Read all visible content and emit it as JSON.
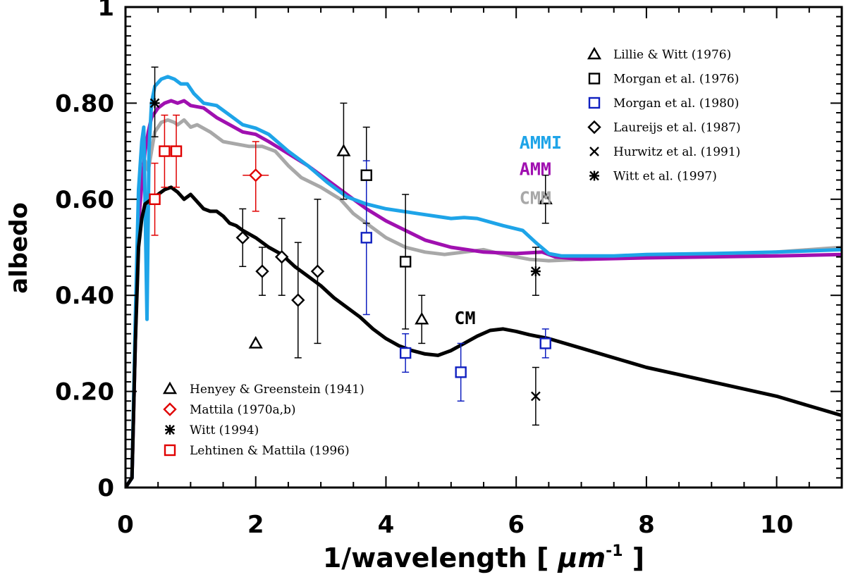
{
  "chart_data": {
    "type": "line",
    "xlabel_main": "1/wavelength [ ",
    "xlabel_unit": "μm",
    "xlabel_exp": "-1",
    "xlabel_close": " ]",
    "ylabel": "albedo",
    "xlim": [
      0,
      11
    ],
    "ylim": [
      0,
      1
    ],
    "xticks": [
      0,
      2,
      4,
      6,
      8,
      10
    ],
    "yticks": [
      0,
      0.2,
      0.4,
      0.6,
      0.8,
      1
    ],
    "xtick_labels": [
      "0",
      "2",
      "4",
      "6",
      "8",
      "10"
    ],
    "ytick_labels": [
      "0",
      "0.20",
      "0.40",
      "0.60",
      "0.80",
      "1"
    ],
    "series": [
      {
        "name": "CMM",
        "color": "#a8a8a8",
        "points": [
          [
            0,
            0
          ],
          [
            0.1,
            0.02
          ],
          [
            0.15,
            0.3
          ],
          [
            0.2,
            0.6
          ],
          [
            0.25,
            0.65
          ],
          [
            0.3,
            0.68
          ],
          [
            0.35,
            0.66
          ],
          [
            0.4,
            0.7
          ],
          [
            0.45,
            0.74
          ],
          [
            0.55,
            0.76
          ],
          [
            0.65,
            0.765
          ],
          [
            0.75,
            0.76
          ],
          [
            0.8,
            0.755
          ],
          [
            0.9,
            0.765
          ],
          [
            1.0,
            0.75
          ],
          [
            1.1,
            0.755
          ],
          [
            1.3,
            0.74
          ],
          [
            1.5,
            0.72
          ],
          [
            1.7,
            0.715
          ],
          [
            1.9,
            0.71
          ],
          [
            2.1,
            0.71
          ],
          [
            2.3,
            0.7
          ],
          [
            2.5,
            0.67
          ],
          [
            2.7,
            0.645
          ],
          [
            3.0,
            0.625
          ],
          [
            3.3,
            0.6
          ],
          [
            3.5,
            0.57
          ],
          [
            3.7,
            0.55
          ],
          [
            4.0,
            0.52
          ],
          [
            4.3,
            0.5
          ],
          [
            4.6,
            0.49
          ],
          [
            4.9,
            0.485
          ],
          [
            5.2,
            0.49
          ],
          [
            5.5,
            0.495
          ],
          [
            5.8,
            0.485
          ],
          [
            6.2,
            0.475
          ],
          [
            6.5,
            0.472
          ],
          [
            7.0,
            0.475
          ],
          [
            8.0,
            0.48
          ],
          [
            9.0,
            0.485
          ],
          [
            10.0,
            0.49
          ],
          [
            11.0,
            0.5
          ]
        ]
      },
      {
        "name": "AMM",
        "color": "#a010b0",
        "points": [
          [
            0,
            0
          ],
          [
            0.1,
            0.02
          ],
          [
            0.15,
            0.3
          ],
          [
            0.2,
            0.55
          ],
          [
            0.25,
            0.63
          ],
          [
            0.3,
            0.7
          ],
          [
            0.35,
            0.74
          ],
          [
            0.4,
            0.77
          ],
          [
            0.5,
            0.79
          ],
          [
            0.6,
            0.8
          ],
          [
            0.7,
            0.805
          ],
          [
            0.8,
            0.8
          ],
          [
            0.9,
            0.805
          ],
          [
            1.0,
            0.795
          ],
          [
            1.2,
            0.79
          ],
          [
            1.4,
            0.77
          ],
          [
            1.6,
            0.755
          ],
          [
            1.8,
            0.74
          ],
          [
            2.0,
            0.735
          ],
          [
            2.2,
            0.72
          ],
          [
            2.5,
            0.695
          ],
          [
            2.8,
            0.67
          ],
          [
            3.1,
            0.64
          ],
          [
            3.4,
            0.61
          ],
          [
            3.7,
            0.58
          ],
          [
            4.0,
            0.555
          ],
          [
            4.3,
            0.535
          ],
          [
            4.6,
            0.515
          ],
          [
            5.0,
            0.5
          ],
          [
            5.5,
            0.49
          ],
          [
            6.0,
            0.487
          ],
          [
            6.4,
            0.49
          ],
          [
            6.6,
            0.48
          ],
          [
            7.0,
            0.475
          ],
          [
            8.0,
            0.478
          ],
          [
            9.0,
            0.48
          ],
          [
            10.0,
            0.482
          ],
          [
            11.0,
            0.485
          ]
        ]
      },
      {
        "name": "AMMI",
        "color": "#1ea4e8",
        "points": [
          [
            0,
            0
          ],
          [
            0.1,
            0.02
          ],
          [
            0.15,
            0.35
          ],
          [
            0.2,
            0.62
          ],
          [
            0.25,
            0.72
          ],
          [
            0.28,
            0.75
          ],
          [
            0.3,
            0.6
          ],
          [
            0.33,
            0.35
          ],
          [
            0.36,
            0.7
          ],
          [
            0.4,
            0.8
          ],
          [
            0.45,
            0.835
          ],
          [
            0.55,
            0.85
          ],
          [
            0.65,
            0.855
          ],
          [
            0.75,
            0.85
          ],
          [
            0.85,
            0.84
          ],
          [
            0.95,
            0.84
          ],
          [
            1.05,
            0.82
          ],
          [
            1.2,
            0.8
          ],
          [
            1.4,
            0.795
          ],
          [
            1.6,
            0.775
          ],
          [
            1.8,
            0.755
          ],
          [
            2.0,
            0.748
          ],
          [
            2.2,
            0.735
          ],
          [
            2.5,
            0.7
          ],
          [
            2.8,
            0.67
          ],
          [
            3.1,
            0.635
          ],
          [
            3.4,
            0.605
          ],
          [
            3.7,
            0.59
          ],
          [
            4.0,
            0.58
          ],
          [
            4.5,
            0.57
          ],
          [
            5.0,
            0.56
          ],
          [
            5.2,
            0.562
          ],
          [
            5.4,
            0.56
          ],
          [
            5.8,
            0.545
          ],
          [
            6.1,
            0.535
          ],
          [
            6.3,
            0.51
          ],
          [
            6.5,
            0.487
          ],
          [
            6.7,
            0.482
          ],
          [
            7.0,
            0.482
          ],
          [
            7.5,
            0.482
          ],
          [
            8.0,
            0.485
          ],
          [
            9.0,
            0.487
          ],
          [
            10.0,
            0.49
          ],
          [
            11.0,
            0.495
          ]
        ]
      },
      {
        "name": "CM",
        "color": "#000000",
        "points": [
          [
            0,
            0
          ],
          [
            0.1,
            0.02
          ],
          [
            0.15,
            0.3
          ],
          [
            0.2,
            0.5
          ],
          [
            0.25,
            0.56
          ],
          [
            0.3,
            0.59
          ],
          [
            0.4,
            0.6
          ],
          [
            0.5,
            0.61
          ],
          [
            0.6,
            0.62
          ],
          [
            0.7,
            0.625
          ],
          [
            0.8,
            0.615
          ],
          [
            0.9,
            0.6
          ],
          [
            1.0,
            0.61
          ],
          [
            1.1,
            0.595
          ],
          [
            1.2,
            0.58
          ],
          [
            1.3,
            0.575
          ],
          [
            1.4,
            0.575
          ],
          [
            1.5,
            0.565
          ],
          [
            1.6,
            0.55
          ],
          [
            1.7,
            0.545
          ],
          [
            1.8,
            0.535
          ],
          [
            2.0,
            0.52
          ],
          [
            2.2,
            0.5
          ],
          [
            2.4,
            0.485
          ],
          [
            2.6,
            0.46
          ],
          [
            2.8,
            0.44
          ],
          [
            3.0,
            0.42
          ],
          [
            3.2,
            0.395
          ],
          [
            3.4,
            0.375
          ],
          [
            3.6,
            0.355
          ],
          [
            3.8,
            0.33
          ],
          [
            4.0,
            0.31
          ],
          [
            4.2,
            0.295
          ],
          [
            4.4,
            0.285
          ],
          [
            4.6,
            0.278
          ],
          [
            4.8,
            0.275
          ],
          [
            5.0,
            0.285
          ],
          [
            5.2,
            0.3
          ],
          [
            5.4,
            0.315
          ],
          [
            5.6,
            0.327
          ],
          [
            5.8,
            0.33
          ],
          [
            6.0,
            0.325
          ],
          [
            6.2,
            0.318
          ],
          [
            6.5,
            0.31
          ],
          [
            7.0,
            0.29
          ],
          [
            7.5,
            0.27
          ],
          [
            8.0,
            0.25
          ],
          [
            8.5,
            0.235
          ],
          [
            9.0,
            0.22
          ],
          [
            9.5,
            0.205
          ],
          [
            10.0,
            0.19
          ],
          [
            10.5,
            0.17
          ],
          [
            11.0,
            0.15
          ]
        ]
      }
    ],
    "curve_labels": [
      {
        "text": "AMMI",
        "color": "#1ea4e8",
        "x": 6.05,
        "y": 0.705
      },
      {
        "text": "AMM",
        "color": "#a010b0",
        "x": 6.05,
        "y": 0.65
      },
      {
        "text": "CMM",
        "color": "#a8a8a8",
        "x": 6.05,
        "y": 0.59
      },
      {
        "text": "CM",
        "color": "#000000",
        "x": 5.05,
        "y": 0.34
      }
    ],
    "observations": [
      {
        "source": "Henyey & Greenstein (1941)",
        "marker": "triangle",
        "color": "#000000",
        "points": [
          {
            "x": 2.0,
            "y": 0.3,
            "lo": 0.3,
            "hi": 0.3,
            "xerr": 0.05
          }
        ]
      },
      {
        "source": "Mattila (1970a,b)",
        "marker": "diamond",
        "color": "#e00000",
        "points": [
          {
            "x": 2.0,
            "y": 0.65,
            "lo": 0.575,
            "hi": 0.72,
            "xerr": 0.2
          }
        ]
      },
      {
        "source": "Witt (1994)",
        "marker": "asterisk",
        "color": "#000000",
        "points": [
          {
            "x": 0.45,
            "y": 0.8,
            "lo": 0.73,
            "hi": 0.875
          }
        ]
      },
      {
        "source": "Lehtinen & Mattila (1996)",
        "marker": "square",
        "color": "#e00000",
        "points": [
          {
            "x": 0.45,
            "y": 0.6,
            "lo": 0.525,
            "hi": 0.675
          },
          {
            "x": 0.6,
            "y": 0.7,
            "lo": 0.625,
            "hi": 0.775
          },
          {
            "x": 0.78,
            "y": 0.7,
            "lo": 0.625,
            "hi": 0.775
          }
        ]
      },
      {
        "source": "Lillie & Witt (1976)",
        "marker": "triangle",
        "color": "#000000",
        "points": [
          {
            "x": 3.35,
            "y": 0.7,
            "lo": 0.6,
            "hi": 0.8
          },
          {
            "x": 4.55,
            "y": 0.35,
            "lo": 0.3,
            "hi": 0.4
          },
          {
            "x": 6.45,
            "y": 0.6,
            "lo": 0.55,
            "hi": 0.65
          }
        ]
      },
      {
        "source": "Morgan et al. (1976)",
        "marker": "square",
        "color": "#000000",
        "points": [
          {
            "x": 3.7,
            "y": 0.65,
            "lo": 0.55,
            "hi": 0.75
          },
          {
            "x": 4.3,
            "y": 0.47,
            "lo": 0.33,
            "hi": 0.61
          }
        ]
      },
      {
        "source": "Morgan et al. (1980)",
        "marker": "square",
        "color": "#1020c0",
        "points": [
          {
            "x": 3.7,
            "y": 0.52,
            "lo": 0.36,
            "hi": 0.68
          },
          {
            "x": 4.3,
            "y": 0.28,
            "lo": 0.24,
            "hi": 0.32
          },
          {
            "x": 5.15,
            "y": 0.24,
            "lo": 0.18,
            "hi": 0.3
          },
          {
            "x": 6.45,
            "y": 0.3,
            "lo": 0.27,
            "hi": 0.33
          }
        ]
      },
      {
        "source": "Laureijs et al. (1987)",
        "marker": "diamond",
        "color": "#000000",
        "points": [
          {
            "x": 1.8,
            "y": 0.52,
            "lo": 0.46,
            "hi": 0.58
          },
          {
            "x": 2.1,
            "y": 0.45,
            "lo": 0.4,
            "hi": 0.5
          },
          {
            "x": 2.4,
            "y": 0.48,
            "lo": 0.4,
            "hi": 0.56
          },
          {
            "x": 2.65,
            "y": 0.39,
            "lo": 0.27,
            "hi": 0.51
          },
          {
            "x": 2.95,
            "y": 0.45,
            "lo": 0.3,
            "hi": 0.6
          }
        ]
      },
      {
        "source": "Hurwitz et al. (1991)",
        "marker": "cross",
        "color": "#000000",
        "points": [
          {
            "x": 6.3,
            "y": 0.19,
            "lo": 0.13,
            "hi": 0.25
          }
        ]
      },
      {
        "source": "Witt et al. (1997)",
        "marker": "asterisk",
        "color": "#000000",
        "points": [
          {
            "x": 6.3,
            "y": 0.45,
            "lo": 0.4,
            "hi": 0.5
          }
        ]
      }
    ],
    "legend_top_right": [
      {
        "label": "Lillie & Witt (1976)",
        "marker": "triangle",
        "color": "#000000"
      },
      {
        "label": "Morgan et al. (1976)",
        "marker": "square",
        "color": "#000000"
      },
      {
        "label": "Morgan et al. (1980)",
        "marker": "square",
        "color": "#1020c0"
      },
      {
        "label": "Laureijs et al. (1987)",
        "marker": "diamond",
        "color": "#000000"
      },
      {
        "label": "Hurwitz et al. (1991)",
        "marker": "cross",
        "color": "#000000"
      },
      {
        "label": " Witt et al. (1997)",
        "marker": "asterisk",
        "color": "#000000"
      }
    ],
    "legend_bottom_left": [
      {
        "label": "Henyey & Greenstein (1941)",
        "marker": "triangle",
        "color": "#000000"
      },
      {
        "label": "Mattila (1970a,b)",
        "marker": "diamond",
        "color": "#e00000"
      },
      {
        "label": "Witt (1994)",
        "marker": "asterisk",
        "color": "#000000"
      },
      {
        "label": "Lehtinen & Mattila (1996)",
        "marker": "square",
        "color": "#e00000"
      }
    ]
  }
}
